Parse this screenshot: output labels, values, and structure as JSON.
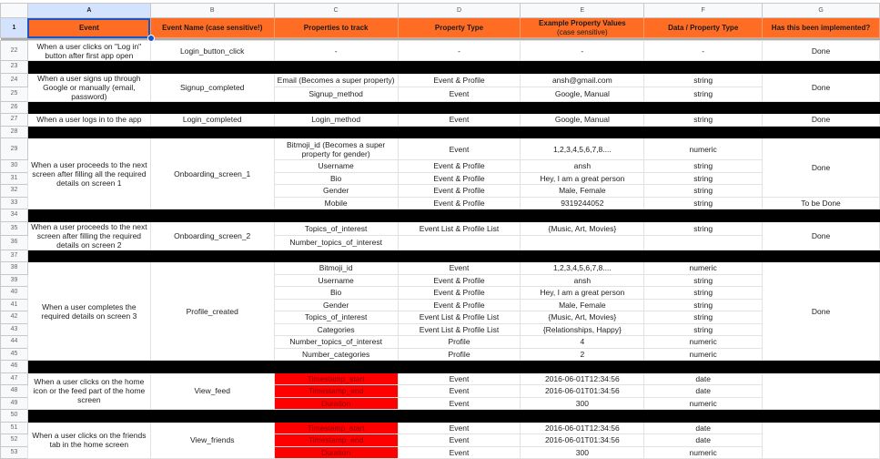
{
  "columns": [
    "A",
    "B",
    "C",
    "D",
    "E",
    "F",
    "G"
  ],
  "header_row_number": "1",
  "headers": [
    "Event",
    "Event Name (case sensitive!)",
    "Properties to track",
    "Property Type",
    "Example Property Values",
    "Data / Property Type",
    "Has this been implemented?"
  ],
  "headers_sub": {
    "4": "(case sensitive)"
  },
  "colors": {
    "header_bg": "#ff6d24",
    "separator": "#000000",
    "highlight_red": "#ff0000",
    "selection": "#1a56c8"
  },
  "groups": [
    {
      "event": "When a user clicks on \"Log in\" button after first app open",
      "name": "Login_button_click",
      "rows": [
        {
          "n": "22",
          "prop": "-",
          "type": "-",
          "example": "-",
          "dtype": "-",
          "status": "Done",
          "h": 22
        }
      ],
      "sep": "23"
    },
    {
      "event": "When a user signs up through Google or manually (email, password)",
      "name": "Signup_completed",
      "status": "Done",
      "rows": [
        {
          "n": "24",
          "prop": "Email (Becomes a super property)",
          "type": "Event & Profile",
          "example": "ansh@gmail.com",
          "dtype": "string"
        },
        {
          "n": "25",
          "prop": "Signup_method",
          "type": "Event",
          "example": "Google, Manual",
          "dtype": "string"
        }
      ],
      "sep": "26"
    },
    {
      "event": "When a user logs in to the app",
      "name": "Login_completed",
      "rows": [
        {
          "n": "27",
          "prop": "Login_method",
          "type": "Event",
          "example": "Google, Manual",
          "dtype": "string",
          "status": "Done"
        }
      ],
      "sep": "28"
    },
    {
      "event": "When a user proceeds to the next screen after filling all the required details on screen 1",
      "name": "Onboarding_screen_1",
      "status": "Done",
      "status_span": 4,
      "rows": [
        {
          "n": "29",
          "prop": "Bitmoji_id (Becomes a super property for gender)",
          "type": "Event",
          "example": "1,2,3,4,5,6,7,8....",
          "dtype": "numeric",
          "h": 24
        },
        {
          "n": "30",
          "prop": "Username",
          "type": "Event & Profile",
          "example": "ansh",
          "dtype": "string"
        },
        {
          "n": "31",
          "prop": "Bio",
          "type": "Event & Profile",
          "example": "Hey, I am a great person",
          "dtype": "string"
        },
        {
          "n": "32",
          "prop": "Gender",
          "type": "Event & Profile",
          "example": "Male, Female",
          "dtype": "string"
        },
        {
          "n": "33",
          "prop": "Mobile",
          "type": "Event & Profile",
          "example": "9319244052",
          "dtype": "string",
          "status": "To be Done"
        }
      ],
      "sep": "34"
    },
    {
      "event": "When a user proceeds to the next screen after filling the required details on screen 2",
      "name": "Onboarding_screen_2",
      "status": "Done",
      "rows": [
        {
          "n": "35",
          "prop": "Topics_of_interest",
          "type": "Event List & Profile List",
          "example": "{Music, Art, Movies}",
          "dtype": "string"
        },
        {
          "n": "36",
          "prop": "Number_topics_of_interest",
          "type": "",
          "example": "",
          "dtype": ""
        }
      ],
      "sep": "37"
    },
    {
      "event": "When a user completes the required details on screen 3",
      "name": "Profile_created",
      "status": "Done",
      "rows": [
        {
          "n": "38",
          "prop": "Bitmoji_id",
          "type": "Event",
          "example": "1,2,3,4,5,6,7,8....",
          "dtype": "numeric"
        },
        {
          "n": "39",
          "prop": "Username",
          "type": "Event & Profile",
          "example": "ansh",
          "dtype": "string"
        },
        {
          "n": "40",
          "prop": "Bio",
          "type": "Event & Profile",
          "example": "Hey, I am a great person",
          "dtype": "string"
        },
        {
          "n": "41",
          "prop": "Gender",
          "type": "Event & Profile",
          "example": "Male, Female",
          "dtype": "string"
        },
        {
          "n": "42",
          "prop": "Topics_of_interest",
          "type": "Event List & Profile List",
          "example": "{Music, Art, Movies}",
          "dtype": "string"
        },
        {
          "n": "43",
          "prop": "Categories",
          "type": "Event List & Profile List",
          "example": "{Relationships, Happy}",
          "dtype": "string"
        },
        {
          "n": "44",
          "prop": "Number_topics_of_interest",
          "type": "Profile",
          "example": "4",
          "dtype": "numeric"
        },
        {
          "n": "45",
          "prop": "Number_categories",
          "type": "Profile",
          "example": "2",
          "dtype": "numeric"
        }
      ],
      "sep": "46"
    },
    {
      "event": "When a user clicks on the home icon or the feed part of the home screen",
      "name": "View_feed",
      "status": "",
      "rows": [
        {
          "n": "47",
          "prop": "Timestamp_start",
          "type": "Event",
          "example": "2016-06-01T12:34:56",
          "dtype": "date",
          "red": true
        },
        {
          "n": "48",
          "prop": "Timestamp_end",
          "type": "Event",
          "example": "2016-06-01T01:34:56",
          "dtype": "date",
          "red": true
        },
        {
          "n": "49",
          "prop": "Duration",
          "type": "Event",
          "example": "300",
          "dtype": "numeric",
          "red": true
        }
      ],
      "sep": "50"
    },
    {
      "event": "When a user clicks on the friends tab in the home screen",
      "name": "View_friends",
      "status": "",
      "rows": [
        {
          "n": "51",
          "prop": "Timestamp_start",
          "type": "Event",
          "example": "2016-06-01T12:34:56",
          "dtype": "date",
          "red": true
        },
        {
          "n": "52",
          "prop": "Timestamp_end",
          "type": "Event",
          "example": "2016-06-01T01:34:56",
          "dtype": "date",
          "red": true
        },
        {
          "n": "53",
          "prop": "Duration",
          "type": "Event",
          "example": "300",
          "dtype": "numeric",
          "red": true
        }
      ]
    }
  ]
}
